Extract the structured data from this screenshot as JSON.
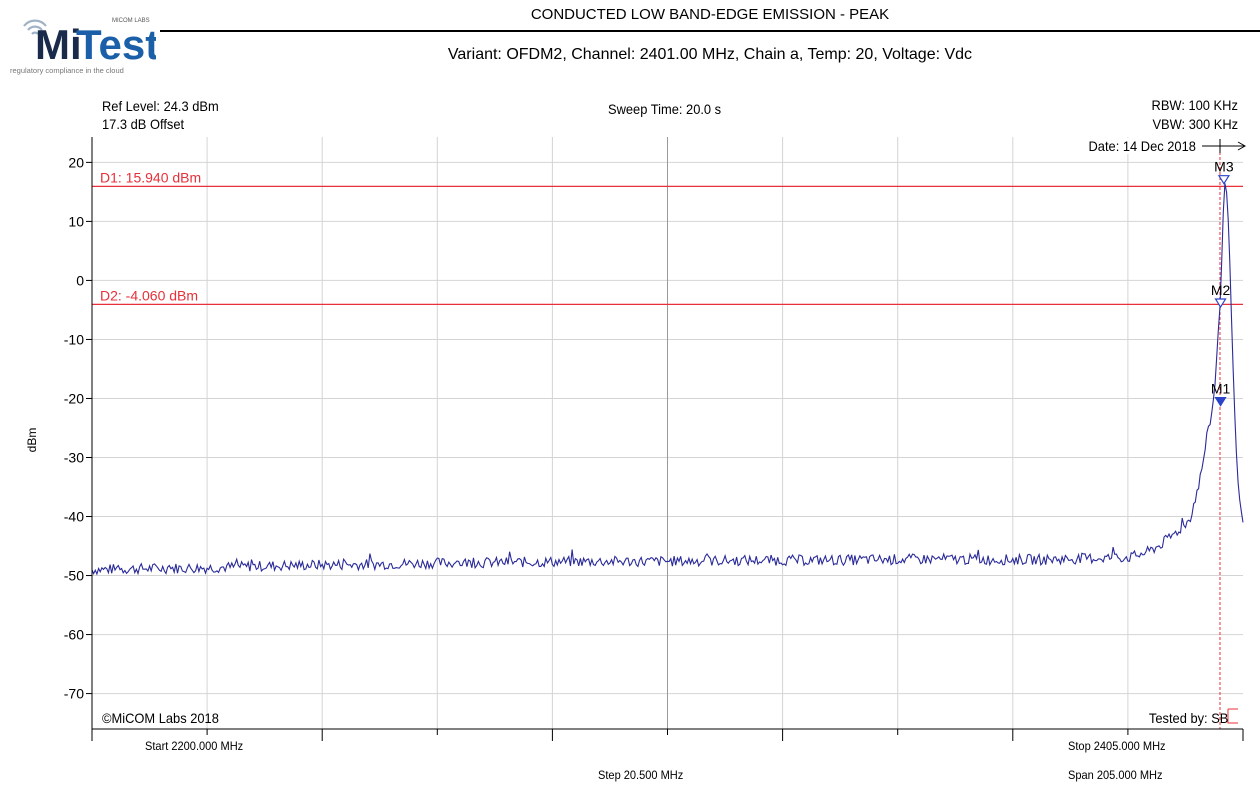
{
  "logo": {
    "brand": "MiTest",
    "brand_mi": "Mi",
    "brand_test": "Test",
    "small_caption": "MICOM LABS",
    "tagline": "regulatory compliance in the cloud",
    "brand_color": "#1a5fa8"
  },
  "header": {
    "title": "CONDUCTED LOW BAND-EDGE EMISSION - PEAK",
    "subtitle": "Variant: OFDM2, Channel: 2401.00 MHz, Chain a, Temp: 20, Voltage:  Vdc"
  },
  "info": {
    "ref_level": "Ref Level: 24.3 dBm",
    "offset": "17.3 dB Offset",
    "sweep_time": "Sweep Time: 20.0 s",
    "rbw": "RBW: 100 KHz",
    "vbw": "VBW: 300 KHz",
    "date": "Date: 14 Dec 2018"
  },
  "footer": {
    "start": "Start 2200.000 MHz",
    "stop": "Stop 2405.000 MHz",
    "step": "Step 20.500 MHz",
    "span": "Span 205.000 MHz",
    "copyright": "©MiCOM Labs 2018",
    "tested_by": "Tested by: SB"
  },
  "chart_data": {
    "type": "line",
    "ylabel": "dBm",
    "ylim": [
      -76,
      24.3
    ],
    "xlim": [
      2200.0,
      2405.0
    ],
    "x_unit": "MHz",
    "yticks": [
      20,
      10,
      0,
      -10,
      -20,
      -30,
      -40,
      -50,
      -60,
      -70
    ],
    "ytick_labels": [
      "20",
      "10",
      "0",
      "-10",
      "-20",
      "-30",
      "-40",
      "-50",
      "-60",
      "-70"
    ],
    "xticks": [
      2200.0,
      2220.5,
      2241.0,
      2261.5,
      2282.0,
      2302.5,
      2323.0,
      2343.5,
      2364.0,
      2384.5,
      2405.0
    ],
    "grid": true,
    "display_lines": [
      {
        "label": "D1: 15.940 dBm",
        "value": 15.94,
        "color": "#e8303a"
      },
      {
        "label": "D2: -4.060 dBm",
        "value": -4.06,
        "color": "#e8303a"
      }
    ],
    "markers": [
      {
        "label": "M1",
        "x": 2401.0,
        "y": -20.7,
        "filled": true
      },
      {
        "label": "M2",
        "x": 2401.0,
        "y": -4.0,
        "filled": false
      },
      {
        "label": "M3",
        "x": 2401.6,
        "y": 16.9,
        "filled": false
      }
    ],
    "marker_vline_x": 2400.9,
    "series": [
      {
        "color": "#2a2a9a",
        "points": [
          [
            2200.0,
            -49.0
          ],
          [
            2210.0,
            -48.8
          ],
          [
            2220.0,
            -48.7
          ],
          [
            2230.0,
            -48.4
          ],
          [
            2240.0,
            -48.2
          ],
          [
            2250.0,
            -48.1
          ],
          [
            2260.0,
            -47.9
          ],
          [
            2270.0,
            -47.8
          ],
          [
            2280.0,
            -47.7
          ],
          [
            2290.0,
            -47.6
          ],
          [
            2300.0,
            -47.6
          ],
          [
            2310.0,
            -47.5
          ],
          [
            2320.0,
            -47.4
          ],
          [
            2330.0,
            -47.4
          ],
          [
            2340.0,
            -47.3
          ],
          [
            2350.0,
            -47.2
          ],
          [
            2360.0,
            -47.3
          ],
          [
            2370.0,
            -47.3
          ],
          [
            2380.0,
            -47.0
          ],
          [
            2385.0,
            -46.9
          ],
          [
            2388.0,
            -46.0
          ],
          [
            2390.0,
            -45.0
          ],
          [
            2392.0,
            -43.5
          ],
          [
            2394.0,
            -42.0
          ],
          [
            2395.5,
            -40.5
          ],
          [
            2396.5,
            -37.0
          ],
          [
            2397.5,
            -33.0
          ],
          [
            2398.5,
            -27.0
          ],
          [
            2399.5,
            -22.0
          ],
          [
            2400.0,
            -18.0
          ],
          [
            2400.5,
            -10.0
          ],
          [
            2401.0,
            -3.0
          ],
          [
            2401.5,
            12.0
          ],
          [
            2401.8,
            16.8
          ],
          [
            2402.2,
            14.0
          ],
          [
            2402.6,
            5.0
          ],
          [
            2403.0,
            -8.0
          ],
          [
            2403.5,
            -22.0
          ],
          [
            2404.0,
            -33.0
          ],
          [
            2404.5,
            -38.0
          ],
          [
            2405.0,
            -41.0
          ]
        ]
      }
    ]
  }
}
